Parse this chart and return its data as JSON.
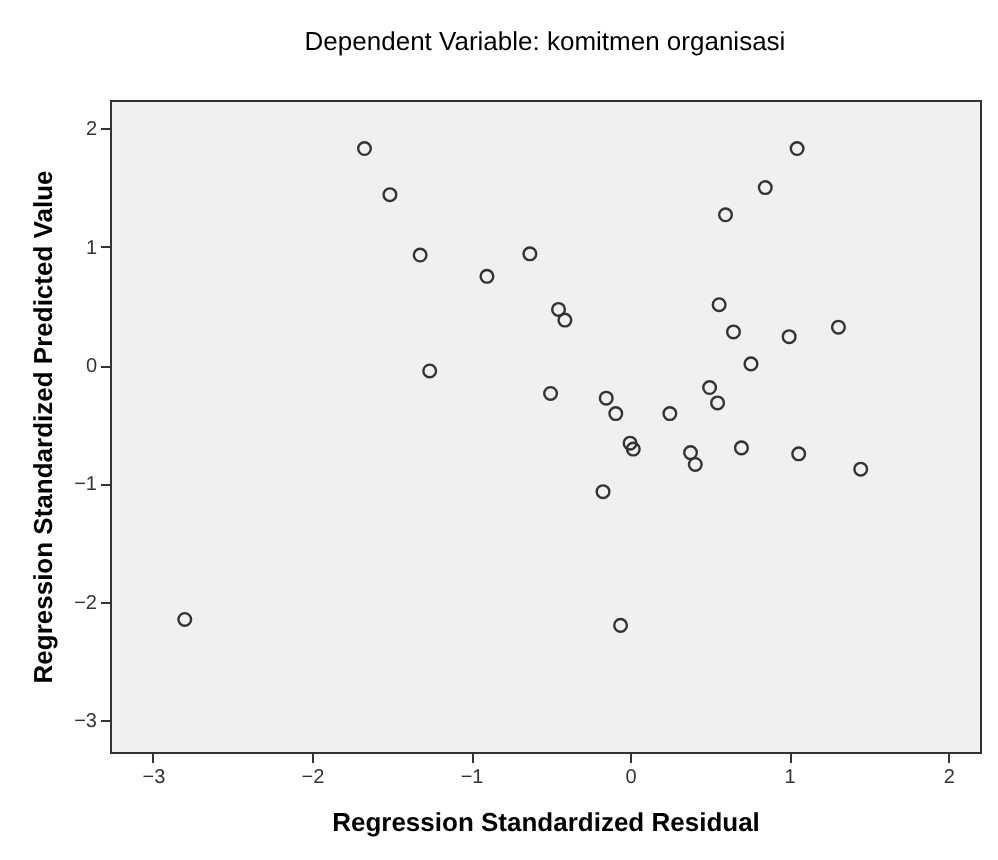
{
  "chart_data": {
    "type": "scatter",
    "title": "Dependent Variable: komitmen organisasi",
    "xlabel": "Regression Standardized Residual",
    "ylabel": "Regression Standardized Predicted Value",
    "x": [
      -1.67,
      -1.51,
      -1.32,
      -1.26,
      -0.9,
      -2.8,
      1.05,
      0.85,
      0.6,
      -0.63,
      -0.45,
      -0.41,
      0.56,
      0.65,
      1.0,
      1.31,
      0.76,
      -0.5,
      -0.15,
      -0.09,
      0.25,
      0.5,
      0.55,
      0.0,
      0.02,
      0.38,
      0.41,
      0.7,
      1.06,
      1.45,
      -0.17,
      -0.06
    ],
    "values": [
      1.83,
      1.44,
      0.93,
      -0.05,
      0.75,
      -2.15,
      1.83,
      1.5,
      1.27,
      0.94,
      0.47,
      0.38,
      0.51,
      0.28,
      0.24,
      0.32,
      0.01,
      -0.24,
      -0.28,
      -0.41,
      -0.41,
      -0.19,
      -0.32,
      -0.66,
      -0.71,
      -0.74,
      -0.84,
      -0.7,
      -0.75,
      -0.88,
      -1.07,
      -2.2
    ],
    "color": "#333333",
    "marker": "circle",
    "xlim": [
      -3.27,
      2.2
    ],
    "ylim": [
      -3.27,
      2.24
    ],
    "xticks": [
      -3,
      -2,
      -1,
      0,
      1,
      2
    ],
    "yticks": [
      -3,
      -2,
      -1,
      0,
      1,
      2
    ],
    "grid": false
  }
}
